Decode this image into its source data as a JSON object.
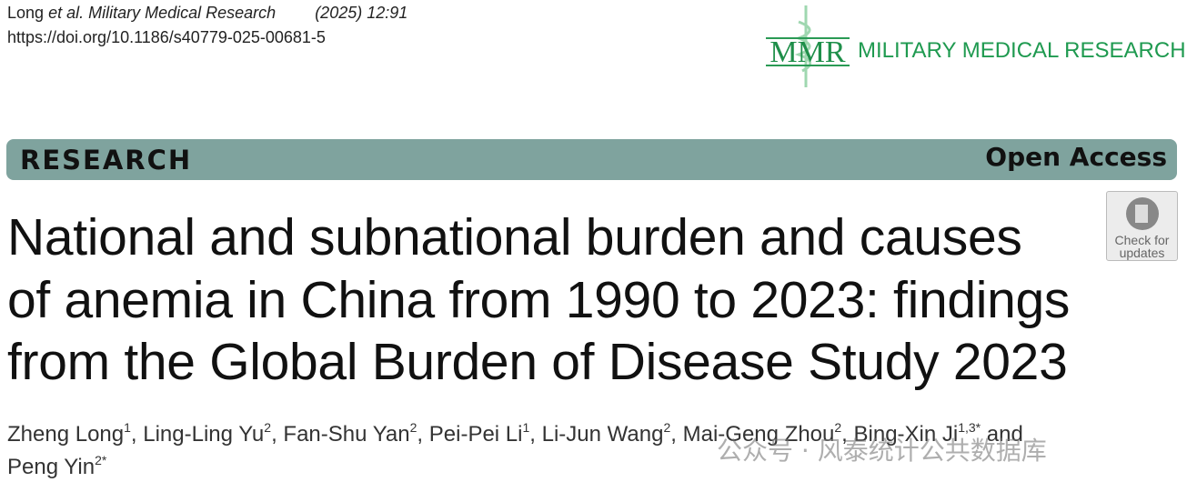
{
  "header": {
    "author": "Long",
    "etal": "et al.",
    "journal": "Military Medical Research",
    "citation": "(2025) 12:91",
    "doi": "https://doi.org/10.1186/s40779-025-00681-5"
  },
  "logo": {
    "mark": "MMR",
    "name": "MILITARY MEDICAL RESEARCH"
  },
  "banner": {
    "type": "RESEARCH",
    "access": "Open Access"
  },
  "badge": {
    "line1": "Check for",
    "line2": "updates"
  },
  "title": {
    "lines": [
      "National and subnational burden and causes",
      "of anemia in China from 1990 to 2023: findings",
      "from the Global Burden of Disease Study 2023"
    ]
  },
  "authors": {
    "line1": [
      {
        "name": "Zheng Long",
        "sup": "1",
        "sep": ", "
      },
      {
        "name": "Ling-Ling Yu",
        "sup": "2",
        "sep": ", "
      },
      {
        "name": "Fan-Shu Yan",
        "sup": "2",
        "sep": ", "
      },
      {
        "name": "Pei-Pei Li",
        "sup": "1",
        "sep": ", "
      },
      {
        "name": "Li-Jun Wang",
        "sup": "2",
        "sep": ", "
      },
      {
        "name": "Mai-Geng Zhou",
        "sup": "2",
        "sep": ", "
      },
      {
        "name": "Bing-Xin Ji",
        "sup": "1,3*",
        "sep": " and"
      }
    ],
    "line2": [
      {
        "name": "Peng Yin",
        "sup": "2*"
      }
    ]
  },
  "watermark": "公众号 · 风泰统计公共数据库"
}
